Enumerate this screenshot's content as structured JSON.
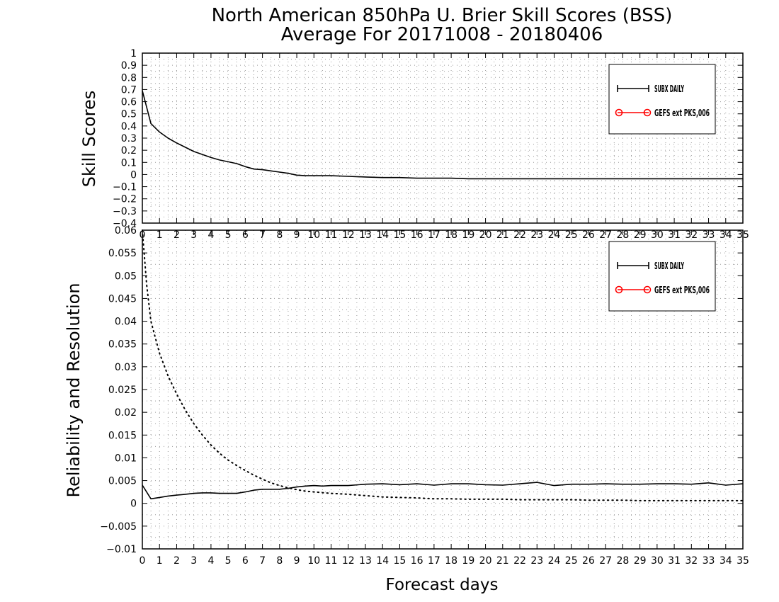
{
  "title_line1": "North American 850hPa U. Brier Skill Scores (BSS)",
  "title_line2": "Average For 20171008 - 20180406",
  "chart_data": [
    {
      "type": "line",
      "ylabel": "Skill Scores",
      "xlim": [
        0,
        35
      ],
      "ylim": [
        -0.4,
        1
      ],
      "xticks": [
        "0",
        "1",
        "2",
        "3",
        "4",
        "5",
        "6",
        "7",
        "8",
        "9",
        "10",
        "11",
        "12",
        "13",
        "14",
        "15",
        "16",
        "17",
        "18",
        "19",
        "20",
        "21",
        "22",
        "23",
        "24",
        "25",
        "26",
        "27",
        "28",
        "29",
        "30",
        "31",
        "32",
        "33",
        "34",
        "35"
      ],
      "yticks": [
        "-0.4",
        "-0.3",
        "-0.2",
        "-0.1",
        "0",
        "0.1",
        "0.2",
        "0.3",
        "0.4",
        "0.5",
        "0.6",
        "0.7",
        "0.8",
        "0.9",
        "1"
      ],
      "grid": true,
      "legend_position": "top-right",
      "legend": [
        "SUBX DAILY",
        "GEFS ext PKS,006"
      ],
      "series": [
        {
          "name": "SUBX DAILY",
          "color": "#000000",
          "style": "solid",
          "x": [
            0,
            0.5,
            1,
            1.5,
            2,
            2.5,
            3,
            3.5,
            4,
            4.5,
            5,
            5.5,
            6,
            6.5,
            7,
            7.5,
            8,
            8.5,
            9,
            9.5,
            10,
            11,
            12,
            13,
            14,
            15,
            16,
            17,
            18,
            19,
            20,
            21,
            22,
            23,
            24,
            25,
            26,
            27,
            28,
            29,
            30,
            31,
            32,
            33,
            34,
            35
          ],
          "values": [
            0.69,
            0.42,
            0.35,
            0.3,
            0.26,
            0.225,
            0.19,
            0.165,
            0.14,
            0.12,
            0.105,
            0.09,
            0.065,
            0.045,
            0.04,
            0.03,
            0.02,
            0.01,
            -0.005,
            -0.01,
            -0.01,
            -0.01,
            -0.015,
            -0.02,
            -0.025,
            -0.025,
            -0.03,
            -0.03,
            -0.03,
            -0.035,
            -0.035,
            -0.035,
            -0.035,
            -0.035,
            -0.035,
            -0.035,
            -0.035,
            -0.035,
            -0.035,
            -0.035,
            -0.035,
            -0.035,
            -0.035,
            -0.035,
            -0.035,
            -0.035
          ]
        },
        {
          "name": "GEFS ext PKS,006",
          "color": "#ff0000",
          "style": "solid",
          "x": [],
          "values": []
        }
      ]
    },
    {
      "type": "line",
      "ylabel": "Reliability and Resolution",
      "xlabel": "Forecast days",
      "xlim": [
        0,
        35
      ],
      "ylim": [
        -0.01,
        0.06
      ],
      "xticks": [
        "0",
        "1",
        "2",
        "3",
        "4",
        "5",
        "6",
        "7",
        "8",
        "9",
        "10",
        "11",
        "12",
        "13",
        "14",
        "15",
        "16",
        "17",
        "18",
        "19",
        "20",
        "21",
        "22",
        "23",
        "24",
        "25",
        "26",
        "27",
        "28",
        "29",
        "30",
        "31",
        "32",
        "33",
        "34",
        "35"
      ],
      "yticks": [
        "-0.01",
        "-0.005",
        "0",
        "0.005",
        "0.01",
        "0.015",
        "0.02",
        "0.025",
        "0.03",
        "0.035",
        "0.04",
        "0.045",
        "0.05",
        "0.055",
        "0.06"
      ],
      "grid": true,
      "legend_position": "top-right",
      "legend": [
        "SUBX DAILY",
        "GEFS ext PKS,006"
      ],
      "series": [
        {
          "name": "SUBX DAILY",
          "color": "#000000",
          "style": "solid",
          "x": [
            0,
            0.5,
            1,
            1.5,
            2,
            2.5,
            3,
            3.5,
            4,
            4.5,
            5,
            5.5,
            6,
            6.5,
            7,
            7.5,
            8,
            8.5,
            9,
            9.5,
            10,
            10.5,
            11,
            12,
            13,
            14,
            15,
            16,
            17,
            18,
            19,
            20,
            21,
            22,
            23,
            24,
            25,
            26,
            27,
            28,
            29,
            30,
            31,
            32,
            33,
            34,
            35
          ],
          "values": [
            0.004,
            0.001,
            0.0013,
            0.0016,
            0.0018,
            0.002,
            0.0022,
            0.0023,
            0.0023,
            0.0022,
            0.0022,
            0.0022,
            0.0025,
            0.0029,
            0.0031,
            0.0031,
            0.0031,
            0.0033,
            0.0036,
            0.0038,
            0.0039,
            0.0038,
            0.0039,
            0.0039,
            0.0042,
            0.0043,
            0.0041,
            0.0043,
            0.004,
            0.0043,
            0.0043,
            0.0041,
            0.004,
            0.0043,
            0.0046,
            0.0039,
            0.0042,
            0.0042,
            0.0043,
            0.0042,
            0.0042,
            0.0043,
            0.0043,
            0.0042,
            0.0045,
            0.004,
            0.0043
          ]
        },
        {
          "name": "SUBX DAILY",
          "color": "#000000",
          "style": "dotted",
          "x": [
            0,
            0.25,
            0.5,
            1,
            1.5,
            2,
            2.5,
            3,
            3.5,
            4,
            4.5,
            5,
            5.5,
            6,
            6.5,
            7,
            7.5,
            8,
            8.5,
            9,
            9.5,
            10,
            11,
            12,
            13,
            14,
            15,
            16,
            17,
            18,
            19,
            20,
            21,
            22,
            23,
            24,
            25,
            26,
            27,
            28,
            29,
            30,
            31,
            32,
            33,
            34,
            35
          ],
          "values": [
            0.06,
            0.048,
            0.04,
            0.033,
            0.028,
            0.024,
            0.0205,
            0.0175,
            0.015,
            0.0128,
            0.011,
            0.0095,
            0.0083,
            0.0072,
            0.0062,
            0.0053,
            0.0045,
            0.0039,
            0.0034,
            0.003,
            0.0027,
            0.0025,
            0.0022,
            0.002,
            0.0017,
            0.0014,
            0.0013,
            0.0012,
            0.001,
            0.001,
            0.0009,
            0.0009,
            0.0009,
            0.0008,
            0.0008,
            0.0008,
            0.0008,
            0.0007,
            0.0007,
            0.0007,
            0.0006,
            0.0006,
            0.0006,
            0.0006,
            0.0006,
            0.0006,
            0.0006
          ]
        }
      ]
    }
  ]
}
